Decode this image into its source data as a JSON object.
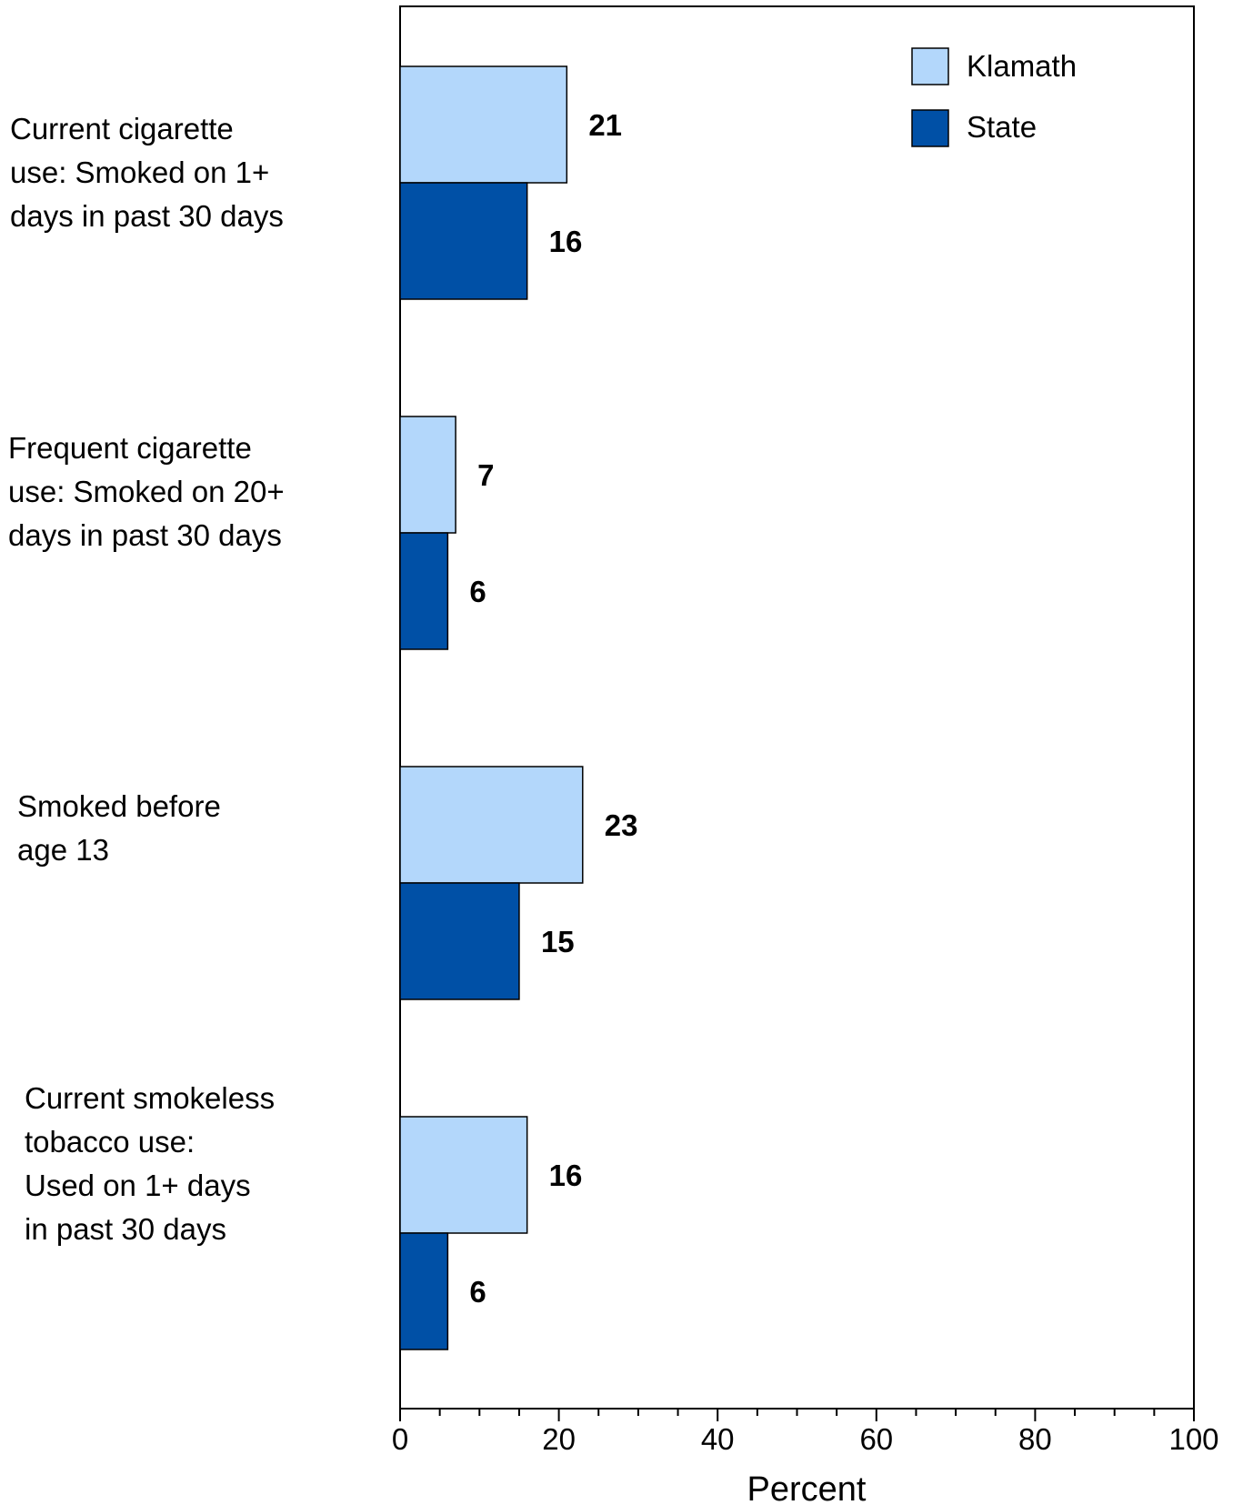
{
  "chart_data": {
    "type": "bar",
    "orientation": "horizontal",
    "categories": [
      "Current cigarette\nuse: Smoked on 1+\ndays in past 30 days",
      "Frequent cigarette\nuse: Smoked on 20+\ndays in past 30 days",
      "Smoked before\nage 13",
      "Current smokeless\ntobacco use:\nUsed on 1+ days\nin past 30 days"
    ],
    "series": [
      {
        "name": "Klamath",
        "color": "#b3d7fb",
        "values": [
          21,
          7,
          23,
          16
        ],
        "labels": [
          "21",
          "7",
          "23",
          "16"
        ]
      },
      {
        "name": "State",
        "color": "#0050a6",
        "values": [
          16,
          6,
          15,
          6
        ],
        "labels": [
          "16",
          "6",
          "15",
          "6"
        ]
      }
    ],
    "xlabel": "Percent",
    "xlim": [
      0,
      100
    ],
    "xticks": [
      0,
      20,
      40,
      60,
      80,
      100
    ],
    "xtick_labels": [
      "0",
      "20",
      "40",
      "60",
      "80",
      "100"
    ],
    "grid": false,
    "legend_position": "top-right"
  }
}
